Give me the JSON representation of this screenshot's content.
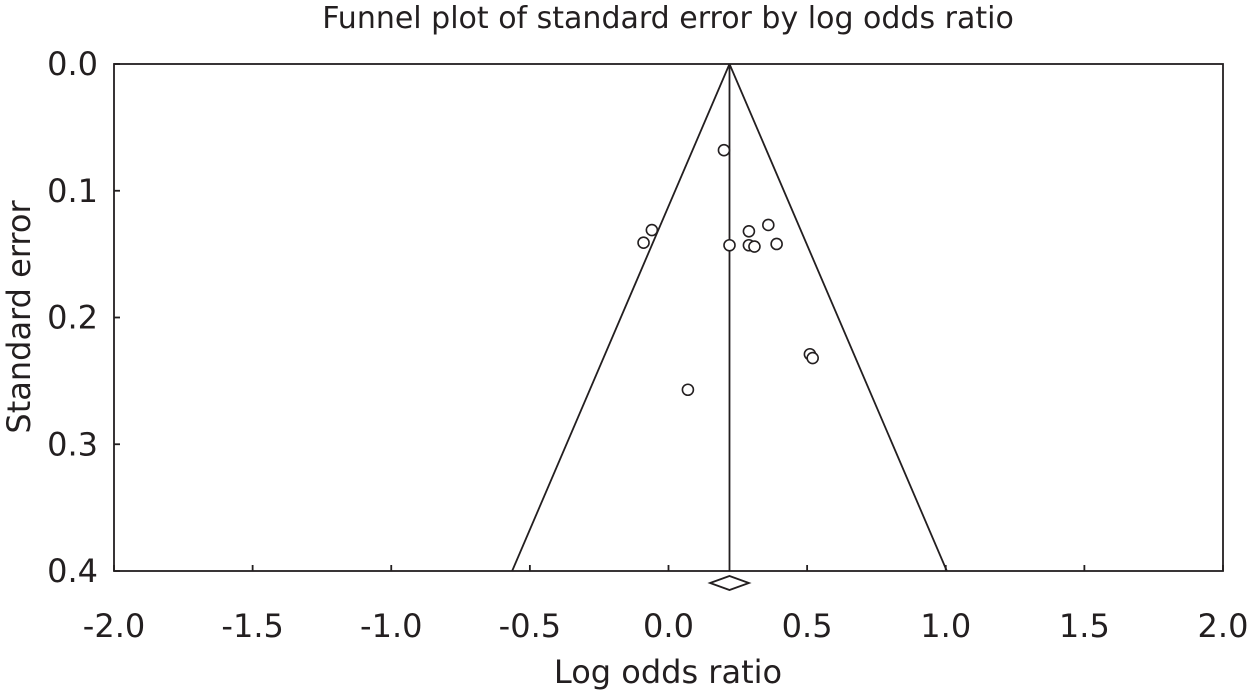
{
  "chart_data": {
    "type": "scatter",
    "title": "Funnel plot of standard error by log odds ratio",
    "xlabel": "Log odds ratio",
    "ylabel": "Standard error",
    "xlim": [
      -2.0,
      2.0
    ],
    "ylim": [
      0.0,
      0.4
    ],
    "y_inverted": true,
    "x_ticks": [
      "-2.0",
      "-1.5",
      "-1.0",
      "-0.5",
      "0.0",
      "0.5",
      "1.0",
      "1.5",
      "2.0"
    ],
    "y_ticks": [
      "0.0",
      "0.1",
      "0.2",
      "0.3",
      "0.4"
    ],
    "grid": false,
    "pooled_effect": 0.22,
    "funnel_bottom_se": 0.4,
    "pooled_diamond": {
      "center": 0.22,
      "lower": 0.15,
      "upper": 0.29
    },
    "points": [
      {
        "x": 0.2,
        "y": 0.068
      },
      {
        "x": -0.06,
        "y": 0.131
      },
      {
        "x": -0.09,
        "y": 0.141
      },
      {
        "x": 0.22,
        "y": 0.143
      },
      {
        "x": 0.29,
        "y": 0.132
      },
      {
        "x": 0.36,
        "y": 0.127
      },
      {
        "x": 0.29,
        "y": 0.143
      },
      {
        "x": 0.31,
        "y": 0.144
      },
      {
        "x": 0.39,
        "y": 0.142
      },
      {
        "x": 0.51,
        "y": 0.229
      },
      {
        "x": 0.52,
        "y": 0.232
      },
      {
        "x": 0.07,
        "y": 0.257
      }
    ]
  }
}
